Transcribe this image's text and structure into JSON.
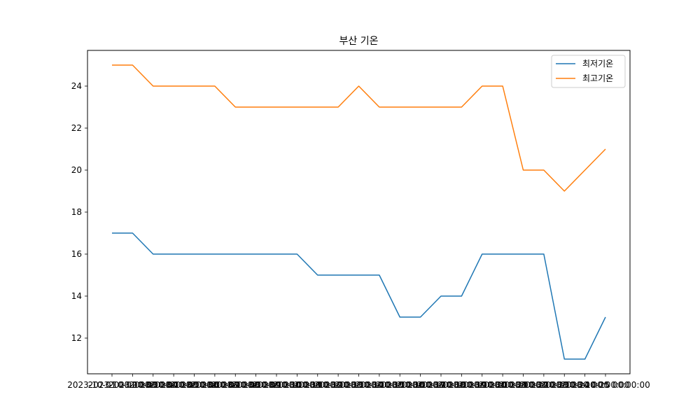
{
  "chart_data": {
    "type": "line",
    "title": "부산 기온",
    "xlabel": "",
    "ylabel": "",
    "x": [
      "2023-10-01 00:00:00",
      "2023-10-02 00:00:00",
      "2023-10-03 00:00:00",
      "2023-10-04 00:00:00",
      "2023-10-05 00:00:00",
      "2023-10-06 00:00:00",
      "2023-10-07 00:00:00",
      "2023-10-08 00:00:00",
      "2023-10-09 00:00:00",
      "2023-10-10 00:00:00",
      "2023-10-11 00:00:00",
      "2023-10-12 00:00:00",
      "2023-10-13 00:00:00",
      "2023-10-14 00:00:00",
      "2023-10-15 00:00:00",
      "2023-10-16 00:00:00",
      "2023-10-17 00:00:00",
      "2023-10-18 00:00:00",
      "2023-10-19 00:00:00",
      "2023-10-20 00:00:00",
      "2023-10-21 00:00:00",
      "2023-10-22 00:00:00",
      "2023-10-23 00:00:00",
      "2023-10-24 00:00:00",
      "2023-10-25 00:00:00"
    ],
    "series": [
      {
        "name": "최저기온",
        "color": "#1f77b4",
        "values": [
          17,
          17,
          16,
          16,
          16,
          16,
          16,
          16,
          16,
          16,
          15,
          15,
          15,
          15,
          13,
          13,
          14,
          14,
          16,
          16,
          16,
          16,
          11,
          11,
          13
        ]
      },
      {
        "name": "최고기온",
        "color": "#ff7f0e",
        "values": [
          25,
          25,
          24,
          24,
          24,
          24,
          23,
          23,
          23,
          23,
          23,
          23,
          24,
          23,
          23,
          23,
          23,
          23,
          24,
          24,
          20,
          20,
          19,
          20,
          21
        ]
      }
    ],
    "yticks": [
      12,
      14,
      16,
      18,
      20,
      22,
      24
    ],
    "ylim": [
      10.3,
      25.7
    ],
    "grid": false,
    "legend": "upper right"
  }
}
